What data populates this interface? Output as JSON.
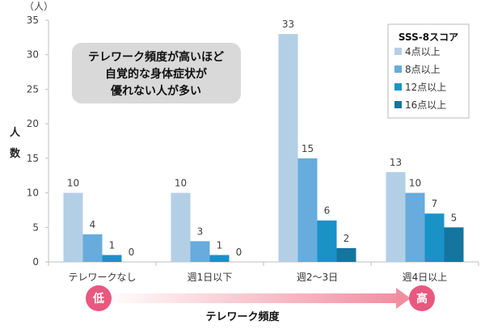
{
  "chart_data": {
    "type": "bar",
    "unit_label": "（人）",
    "ylabel": [
      "人",
      "数"
    ],
    "xlabel": "テレワーク頻度",
    "ylim": [
      0,
      35
    ],
    "yticks": [
      0,
      5,
      10,
      15,
      20,
      25,
      30,
      35
    ],
    "grid": false,
    "categories": [
      "テレワークなし",
      "週1日以下",
      "週2～3日",
      "週4日以上"
    ],
    "legend_title": "SSS-8スコア",
    "legend_position": "top-right",
    "series": [
      {
        "name": "4点以上",
        "color": "#b3cfe6",
        "values": [
          10,
          10,
          33,
          13
        ]
      },
      {
        "name": "8点以上",
        "color": "#67acdc",
        "values": [
          4,
          3,
          15,
          10
        ]
      },
      {
        "name": "12点以上",
        "color": "#1a92c6",
        "values": [
          1,
          1,
          6,
          7
        ]
      },
      {
        "name": "16点以上",
        "color": "#14759f",
        "values": [
          0,
          0,
          2,
          5
        ]
      }
    ],
    "annotation": [
      "テレワーク頻度が高いほど",
      "自覚的な身体症状が",
      "優れない人が多い"
    ],
    "arrow": {
      "low_label": "低",
      "high_label": "高",
      "color": "#e8587f"
    }
  }
}
